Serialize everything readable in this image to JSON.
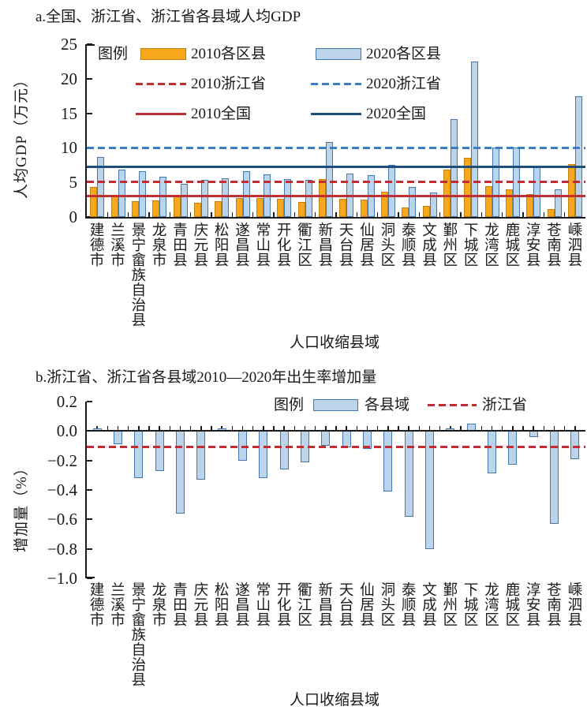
{
  "figure_caption_note": "two-panel statistical figure",
  "chart_data": [
    {
      "id": "a",
      "type": "bar",
      "title": "a.全国、浙江省、浙江省各县域人均GDP",
      "ylabel": "人均GDP（万元）",
      "xlabel": "人口收缩县域",
      "ylim": [
        0,
        25
      ],
      "yticks": [
        {
          "v": 25,
          "label": "25"
        },
        {
          "v": 20,
          "label": "20"
        },
        {
          "v": 15,
          "label": "15"
        },
        {
          "v": 10,
          "label": "10"
        },
        {
          "v": 5,
          "label": "5"
        },
        {
          "v": 0,
          "label": "0"
        }
      ],
      "grid": false,
      "legend_title": "图例",
      "legend_position": "top-left-inside",
      "categories": [
        "建德市",
        "兰溪市",
        "景宁畲族自治县",
        "龙泉市",
        "青田县",
        "庆元县",
        "松阳县",
        "遂昌县",
        "常山县",
        "开化县",
        "衢江区",
        "新昌县",
        "天台县",
        "仙居县",
        "洞头区",
        "泰顺县",
        "文成县",
        "鄞州区",
        "下城区",
        "龙湾区",
        "鹿城区",
        "淳安县",
        "苍南县",
        "嵊泗县"
      ],
      "series": [
        {
          "name": "2010各区县",
          "swatch": "bar",
          "color": "#F7A71C",
          "border": "#C28010",
          "values": [
            4.3,
            3.0,
            2.3,
            2.4,
            3.2,
            2.0,
            2.3,
            2.7,
            2.7,
            2.6,
            2.2,
            5.5,
            2.6,
            2.5,
            3.7,
            1.4,
            1.6,
            6.9,
            8.6,
            4.5,
            4.0,
            3.3,
            1.1,
            7.6
          ]
        },
        {
          "name": "2020各区县",
          "swatch": "bar",
          "color": "#BCD4E9",
          "border": "#4377AE",
          "values": [
            8.7,
            6.9,
            6.6,
            5.8,
            4.8,
            5.4,
            5.6,
            6.6,
            6.2,
            5.5,
            5.4,
            10.9,
            6.3,
            6.0,
            7.5,
            4.3,
            3.5,
            14.2,
            22.5,
            10.0,
            10.0,
            7.3,
            4.0,
            17.5
          ]
        }
      ],
      "ref_lines": [
        {
          "name": "2010浙江省",
          "value": 5.1,
          "style": "dashed",
          "color": "#BE2F34"
        },
        {
          "name": "2020浙江省",
          "value": 10.0,
          "style": "dashed",
          "color": "#3F7DBD"
        },
        {
          "name": "2010全国",
          "value": 3.0,
          "style": "solid",
          "color": "#BE2F34"
        },
        {
          "name": "2020全国",
          "value": 7.2,
          "style": "solid",
          "color": "#1E4E79"
        }
      ]
    },
    {
      "id": "b",
      "type": "bar",
      "title": "b.浙江省、浙江省各县域2010—2020年出生率增加量",
      "ylabel": "增加量（%）",
      "xlabel": "人口收缩县域",
      "ylim": [
        -1.0,
        0.2
      ],
      "yticks": [
        {
          "v": 0.2,
          "label": "0.2"
        },
        {
          "v": 0.0,
          "label": "0.0"
        },
        {
          "v": -0.2,
          "label": "−0.2"
        },
        {
          "v": -0.4,
          "label": "−0.4"
        },
        {
          "v": -0.6,
          "label": "−0.6"
        },
        {
          "v": -0.8,
          "label": "−0.8"
        },
        {
          "v": -1.0,
          "label": "−1.0"
        }
      ],
      "grid": false,
      "legend_title": "图例",
      "legend_position": "top-right-above",
      "categories": [
        "建德市",
        "兰溪市",
        "景宁畲族自治县",
        "龙泉市",
        "青田县",
        "庆元县",
        "松阳县",
        "遂昌县",
        "常山县",
        "开化县",
        "衢江区",
        "新昌县",
        "天台县",
        "仙居县",
        "洞头区",
        "泰顺县",
        "文成县",
        "鄞州区",
        "下城区",
        "龙湾区",
        "鹿城区",
        "淳安县",
        "苍南县",
        "嵊泗县"
      ],
      "series": [
        {
          "name": "各县域",
          "swatch": "bar",
          "color": "#BCD4E9",
          "border": "#4377AE",
          "values": [
            0.02,
            -0.09,
            -0.32,
            -0.27,
            -0.56,
            -0.33,
            0.02,
            -0.2,
            -0.32,
            -0.26,
            -0.21,
            -0.1,
            -0.11,
            -0.12,
            -0.41,
            -0.58,
            -0.8,
            0.02,
            0.05,
            -0.29,
            -0.23,
            -0.04,
            -0.63,
            -0.19
          ]
        }
      ],
      "ref_lines": [
        {
          "name": "浙江省",
          "value": -0.11,
          "style": "dashed",
          "color": "#BE2F34"
        }
      ]
    }
  ]
}
